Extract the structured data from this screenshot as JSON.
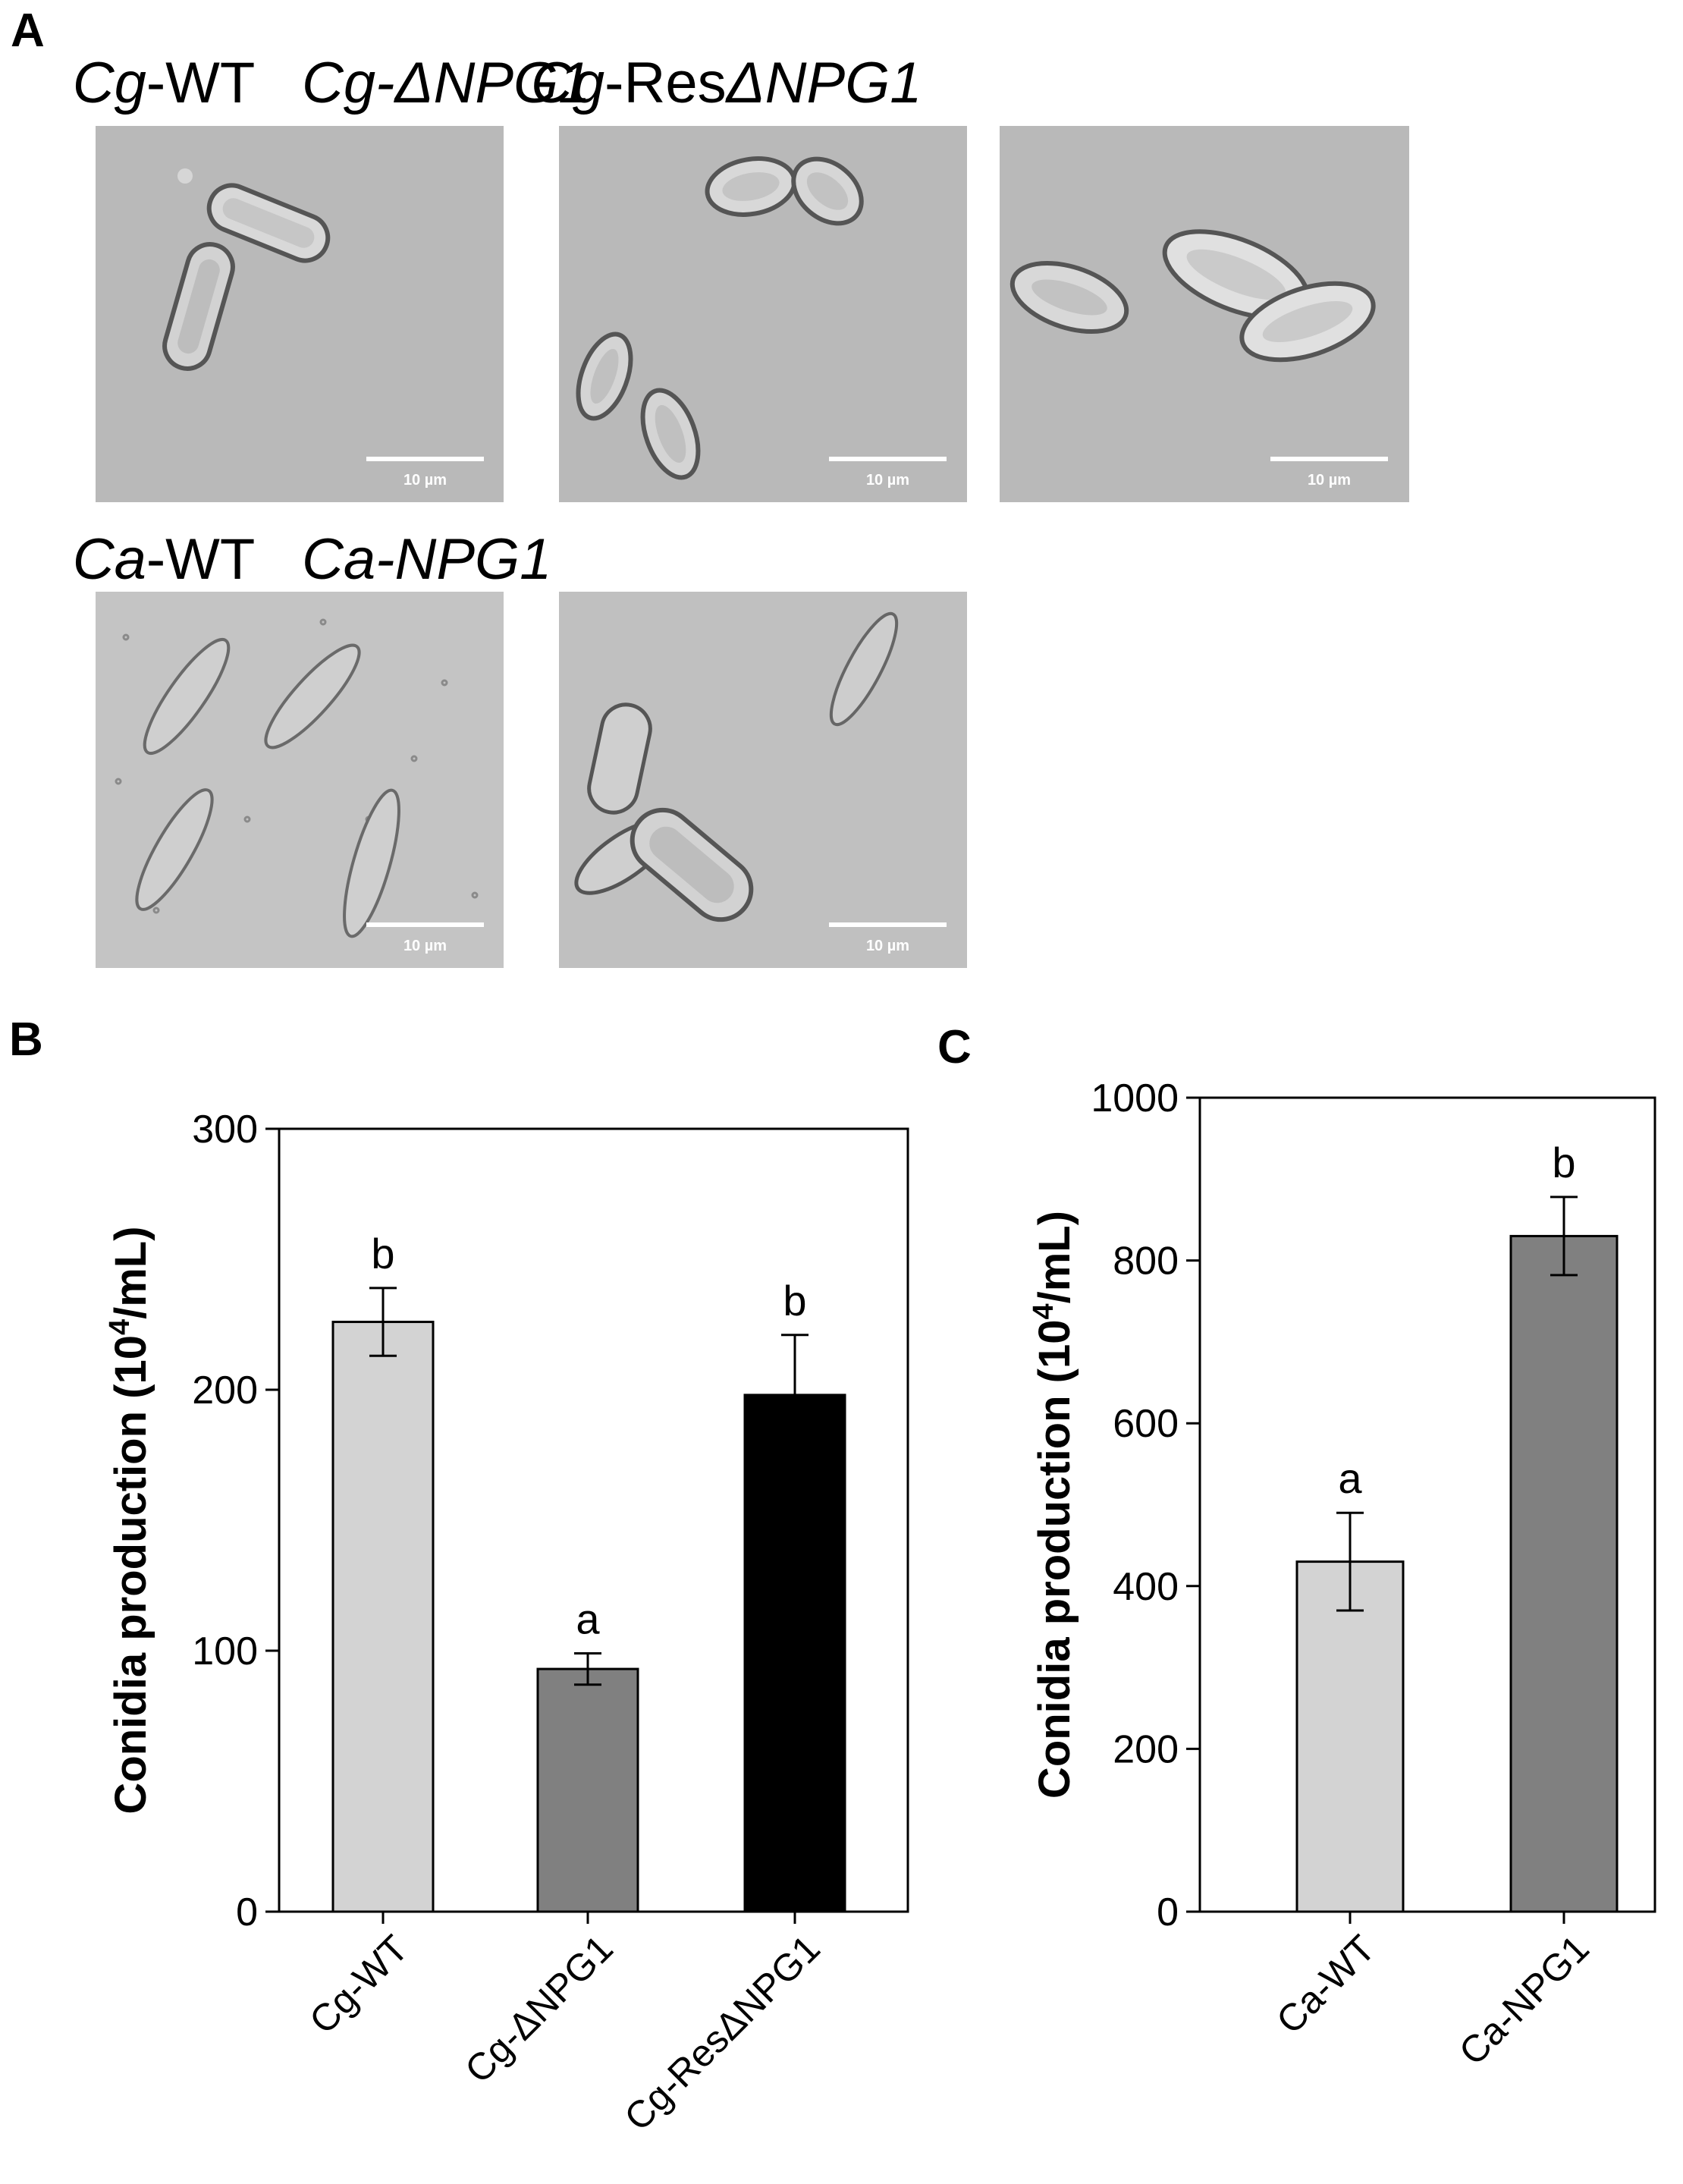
{
  "panel_a": {
    "letter": "A",
    "images": [
      {
        "title_italic": "Cg",
        "title_plain": "-WT",
        "scale_label": "10 µm"
      },
      {
        "title_italic": "Cg-ΔNPG1",
        "title_plain": "",
        "scale_label": "10 µm"
      },
      {
        "title_italic": "Cg",
        "title_plain": "-Res",
        "title_italic2": "ΔNPG1",
        "scale_label": "10 µm"
      },
      {
        "title_italic": "Ca",
        "title_plain": "-WT",
        "scale_label": "10 µm"
      },
      {
        "title_italic": "Ca-NPG1",
        "title_plain": "",
        "scale_label": "10 µm"
      }
    ]
  },
  "panel_b": {
    "letter": "B"
  },
  "panel_c": {
    "letter": "C"
  },
  "chart_data": [
    {
      "panel": "B",
      "type": "bar",
      "categories": [
        "Cg-WT",
        "Cg-ΔNPG1",
        "Cg-ResΔNPG1"
      ],
      "values": [
        226,
        93,
        198
      ],
      "errors": [
        13,
        6,
        23
      ],
      "significance": [
        "b",
        "a",
        "b"
      ],
      "colors": [
        "#d3d3d3",
        "#808080",
        "#000000"
      ],
      "ylabel_main": "Conidia production (10",
      "ylabel_sup": "4",
      "ylabel_end": "/mL)",
      "ylim": [
        0,
        300
      ],
      "yticks": [
        "0",
        "100",
        "200",
        "300"
      ],
      "grid": false
    },
    {
      "panel": "C",
      "type": "bar",
      "categories": [
        "Ca-WT",
        "Ca-NPG1"
      ],
      "values": [
        430,
        830
      ],
      "errors": [
        60,
        48
      ],
      "significance": [
        "a",
        "b"
      ],
      "colors": [
        "#d3d3d3",
        "#808080"
      ],
      "ylabel_main": "Conidia production (10",
      "ylabel_sup": "4",
      "ylabel_end": "/mL)",
      "ylim": [
        0,
        1000
      ],
      "yticks": [
        "0",
        "200",
        "400",
        "600",
        "800",
        "1000"
      ],
      "grid": false
    }
  ]
}
